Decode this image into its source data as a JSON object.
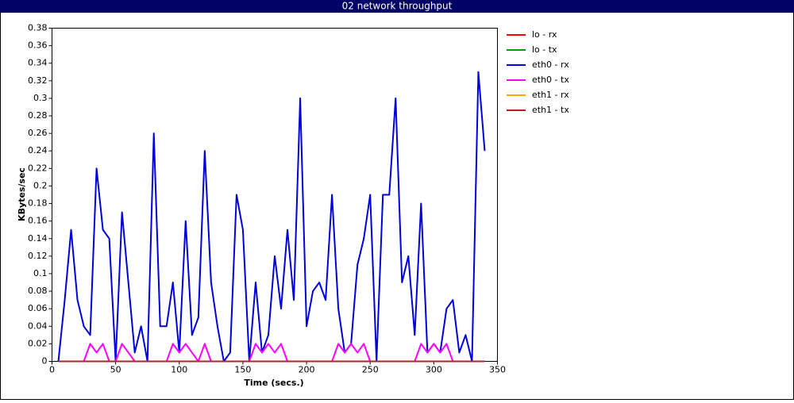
{
  "chart_data": {
    "type": "line",
    "title": "02 network throughput",
    "x_label": "Time (secs.)",
    "y_label": "KBytes/sec",
    "x": [
      5,
      10,
      15,
      20,
      25,
      30,
      35,
      40,
      45,
      50,
      55,
      60,
      65,
      70,
      75,
      80,
      85,
      90,
      95,
      100,
      105,
      110,
      115,
      120,
      125,
      130,
      135,
      140,
      145,
      150,
      155,
      160,
      165,
      170,
      175,
      180,
      185,
      190,
      195,
      200,
      205,
      210,
      215,
      220,
      225,
      230,
      235,
      240,
      245,
      250,
      255,
      260,
      265,
      270,
      275,
      280,
      285,
      290,
      295,
      300,
      305,
      310,
      315,
      320,
      325,
      330,
      335,
      340
    ],
    "series": [
      {
        "name": "lo - rx",
        "color": "#ff0000",
        "values": [
          0,
          0,
          0,
          0,
          0,
          0,
          0,
          0,
          0,
          0,
          0,
          0,
          0,
          0,
          0,
          0,
          0,
          0,
          0,
          0,
          0,
          0,
          0,
          0,
          0,
          0,
          0,
          0,
          0,
          0,
          0,
          0,
          0,
          0,
          0,
          0,
          0,
          0,
          0,
          0,
          0,
          0,
          0,
          0,
          0,
          0,
          0,
          0,
          0,
          0,
          0,
          0,
          0,
          0,
          0,
          0,
          0,
          0,
          0,
          0,
          0,
          0,
          0,
          0,
          0,
          0,
          0,
          0
        ]
      },
      {
        "name": "lo - tx",
        "color": "#00a000",
        "values": [
          0,
          0,
          0,
          0,
          0,
          0,
          0,
          0,
          0,
          0,
          0,
          0,
          0,
          0,
          0,
          0,
          0,
          0,
          0,
          0,
          0,
          0,
          0,
          0,
          0,
          0,
          0,
          0,
          0,
          0,
          0,
          0,
          0,
          0,
          0,
          0,
          0,
          0,
          0,
          0,
          0,
          0,
          0,
          0,
          0,
          0,
          0,
          0,
          0,
          0,
          0,
          0,
          0,
          0,
          0,
          0,
          0,
          0,
          0,
          0,
          0,
          0,
          0,
          0,
          0,
          0,
          0,
          0
        ]
      },
      {
        "name": "eth0 - rx",
        "color": "#0000dd",
        "values": [
          0,
          0.07,
          0.15,
          0.07,
          0.04,
          0.03,
          0.22,
          0.15,
          0.14,
          0,
          0.17,
          0.09,
          0.01,
          0.04,
          0,
          0.26,
          0.04,
          0.04,
          0.09,
          0.01,
          0.16,
          0.03,
          0.05,
          0.24,
          0.09,
          0.04,
          0,
          0.01,
          0.19,
          0.15,
          0,
          0.09,
          0.01,
          0.03,
          0.12,
          0.06,
          0.15,
          0.07,
          0.3,
          0.04,
          0.08,
          0.09,
          0.07,
          0.19,
          0.06,
          0.01,
          0.02,
          0.11,
          0.14,
          0.19,
          0,
          0.19,
          0.19,
          0.3,
          0.09,
          0.12,
          0.03,
          0.18,
          0.01,
          0.02,
          0.01,
          0.06,
          0.07,
          0.01,
          0.03,
          0,
          0.33,
          0.24
        ]
      },
      {
        "name": "eth0 - tx",
        "color": "#ff00ff",
        "values": [
          0,
          0,
          0,
          0,
          0,
          0.02,
          0.01,
          0.02,
          0,
          0,
          0.02,
          0.01,
          0,
          0,
          0,
          0,
          0,
          0,
          0.02,
          0.01,
          0.02,
          0.01,
          0,
          0.02,
          0,
          0,
          0,
          0,
          0,
          0,
          0,
          0.02,
          0.01,
          0.02,
          0.01,
          0.02,
          0,
          0,
          0,
          0,
          0,
          0,
          0,
          0,
          0.02,
          0.01,
          0.02,
          0.01,
          0.02,
          0,
          0,
          0,
          0,
          0,
          0,
          0,
          0,
          0.02,
          0.01,
          0.02,
          0.01,
          0.02,
          0,
          0,
          0,
          0,
          0,
          0
        ]
      },
      {
        "name": "eth1 - rx",
        "color": "#ffa500",
        "values": [
          0,
          0,
          0,
          0,
          0,
          0,
          0,
          0,
          0,
          0,
          0,
          0,
          0,
          0,
          0,
          0,
          0,
          0,
          0,
          0,
          0,
          0,
          0,
          0,
          0,
          0,
          0,
          0,
          0,
          0,
          0,
          0,
          0,
          0,
          0,
          0,
          0,
          0,
          0,
          0,
          0,
          0,
          0,
          0,
          0,
          0,
          0,
          0,
          0,
          0,
          0,
          0,
          0,
          0,
          0,
          0,
          0,
          0,
          0,
          0,
          0,
          0,
          0,
          0,
          0,
          0,
          0,
          0
        ]
      },
      {
        "name": "eth1 - tx",
        "color": "#b22222",
        "values": [
          0,
          0,
          0,
          0,
          0,
          0,
          0,
          0,
          0,
          0,
          0,
          0,
          0,
          0,
          0,
          0,
          0,
          0,
          0,
          0,
          0,
          0,
          0,
          0,
          0,
          0,
          0,
          0,
          0,
          0,
          0,
          0,
          0,
          0,
          0,
          0,
          0,
          0,
          0,
          0,
          0,
          0,
          0,
          0,
          0,
          0,
          0,
          0,
          0,
          0,
          0,
          0,
          0,
          0,
          0,
          0,
          0,
          0,
          0,
          0,
          0,
          0,
          0,
          0,
          0,
          0,
          0,
          0
        ]
      }
    ],
    "xlim": [
      0,
      350
    ],
    "xticks": [
      0,
      50,
      100,
      150,
      200,
      250,
      300,
      350
    ],
    "ylim": [
      0,
      0.38
    ],
    "yticks": [
      0,
      0.02,
      0.04,
      0.06,
      0.08,
      0.1,
      0.12,
      0.14,
      0.16,
      0.18,
      0.2,
      0.22,
      0.24,
      0.26,
      0.28,
      0.3,
      0.32,
      0.34,
      0.36,
      0.38
    ],
    "grid": false,
    "legend": "right"
  }
}
